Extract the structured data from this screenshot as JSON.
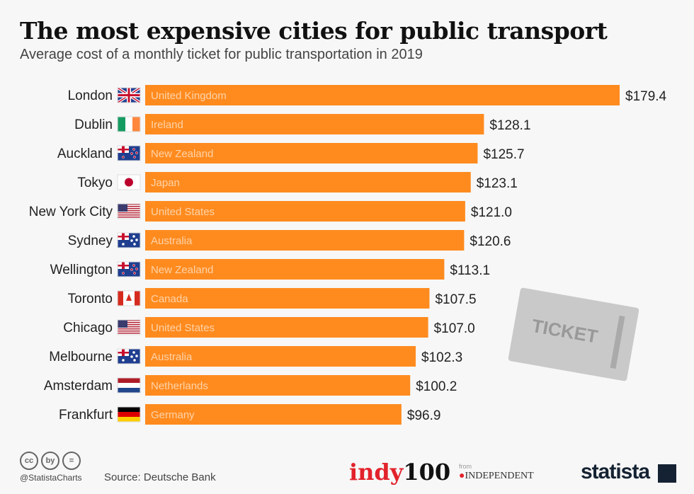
{
  "title": "The most expensive cities for public transport",
  "subtitle": "Average cost of a monthly ticket for public transportation in 2019",
  "ticket_label": "TICKET",
  "footer": {
    "handle": "@StatistaCharts",
    "source": "Source: Deutsche Bank",
    "cc_icons": [
      "cc",
      "by",
      "="
    ],
    "indy_red": "indy",
    "indy_black": "100",
    "from": "from",
    "independent": "INDEPENDENT",
    "statista": "statista"
  },
  "colors": {
    "bar": "#ff8b1f",
    "text": "#222"
  },
  "chart_data": {
    "type": "bar",
    "orientation": "horizontal",
    "title": "The most expensive cities for public transport",
    "xlabel": "",
    "ylabel": "",
    "xlim": [
      0,
      179.4
    ],
    "categories": [
      "London",
      "Dublin",
      "Auckland",
      "Tokyo",
      "New York City",
      "Sydney",
      "Wellington",
      "Toronto",
      "Chicago",
      "Melbourne",
      "Amsterdam",
      "Frankfurt"
    ],
    "countries": [
      "United Kingdom",
      "Ireland",
      "New Zealand",
      "Japan",
      "United States",
      "Australia",
      "New Zealand",
      "Canada",
      "United States",
      "Australia",
      "Netherlands",
      "Germany"
    ],
    "flags": [
      "uk",
      "ie",
      "nz",
      "jp",
      "us",
      "au",
      "nz",
      "ca",
      "us",
      "au",
      "nl",
      "de"
    ],
    "values": [
      179.4,
      128.1,
      125.7,
      123.1,
      121.0,
      120.6,
      113.1,
      107.5,
      107.0,
      102.3,
      100.2,
      96.9
    ],
    "labels": [
      "$179.4",
      "$128.1",
      "$125.7",
      "$123.1",
      "$121.0",
      "$120.6",
      "$113.1",
      "$107.5",
      "$107.0",
      "$102.3",
      "$100.2",
      "$96.9"
    ]
  }
}
